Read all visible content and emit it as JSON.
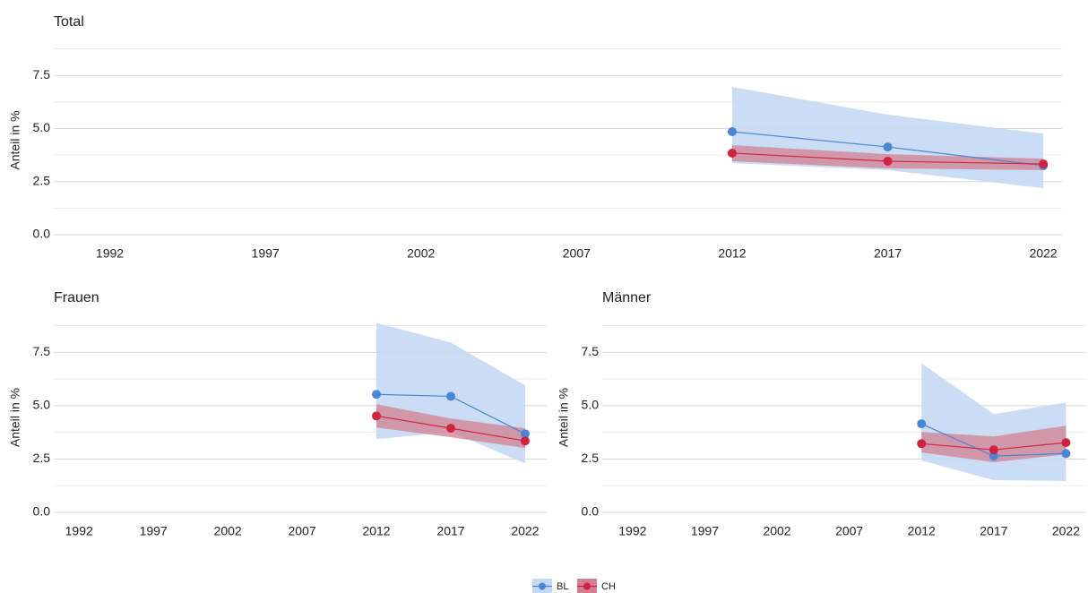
{
  "chart_data": [
    {
      "type": "line",
      "title": "Total",
      "ylabel": "Anteil in %",
      "x": [
        2012,
        2017,
        2022
      ],
      "xlim": [
        1990.2,
        2022.6
      ],
      "xticks": [
        1992,
        1997,
        2002,
        2007,
        2012,
        2017,
        2022
      ],
      "ylim": [
        0,
        8.9
      ],
      "yticks": [
        {
          "value": 0,
          "label": "0.0"
        },
        {
          "value": 2.5,
          "label": "2.5"
        },
        {
          "value": 5,
          "label": "5.0"
        },
        {
          "value": 7.5,
          "label": "7.5"
        }
      ],
      "yminorticks": [
        1.25,
        3.75,
        6.25,
        8.75
      ],
      "grid": true,
      "series": [
        {
          "name": "BL",
          "color": "#4a86d8",
          "band_color": "#c5d9f3",
          "values": [
            4.85,
            4.13,
            3.25
          ],
          "lower": [
            3.37,
            3.04,
            2.19
          ],
          "upper": [
            6.96,
            5.65,
            4.76
          ]
        },
        {
          "name": "CH",
          "color": "#d1233f",
          "band_color": "#d27f90",
          "values": [
            3.84,
            3.46,
            3.33
          ],
          "lower": [
            3.46,
            3.12,
            3.04
          ],
          "upper": [
            4.22,
            3.79,
            3.58
          ]
        }
      ]
    },
    {
      "type": "line",
      "title": "Frauen",
      "ylabel": "Anteil in %",
      "x": [
        2012,
        2017,
        2022
      ],
      "xlim": [
        1990.3,
        2023.45
      ],
      "xticks": [
        1992,
        1997,
        2002,
        2007,
        2012,
        2017,
        2022
      ],
      "ylim": [
        0,
        8.9
      ],
      "yticks": [
        {
          "value": 0,
          "label": "0.0"
        },
        {
          "value": 2.5,
          "label": "2.5"
        },
        {
          "value": 5,
          "label": "5.0"
        },
        {
          "value": 7.5,
          "label": "7.5"
        }
      ],
      "yminorticks": [
        1.25,
        3.75,
        6.25,
        8.75
      ],
      "grid": true,
      "series": [
        {
          "name": "BL",
          "color": "#4a86d8",
          "band_color": "#c5d9f3",
          "values": [
            5.53,
            5.44,
            3.68
          ],
          "lower": [
            3.43,
            3.77,
            2.3
          ],
          "upper": [
            8.88,
            7.96,
            5.95
          ]
        },
        {
          "name": "CH",
          "color": "#d1233f",
          "band_color": "#d27f90",
          "values": [
            4.52,
            3.94,
            3.35
          ],
          "lower": [
            3.98,
            3.52,
            3.02
          ],
          "upper": [
            5.07,
            4.4,
            3.94
          ]
        }
      ]
    },
    {
      "type": "line",
      "title": "Männer",
      "ylabel": "Anteil in %",
      "x": [
        2012,
        2017,
        2022
      ],
      "xlim": [
        1989.9,
        2023.4
      ],
      "xticks": [
        1992,
        1997,
        2002,
        2007,
        2012,
        2017,
        2022
      ],
      "ylim": [
        0,
        8.9
      ],
      "yticks": [
        {
          "value": 0,
          "label": "0.0"
        },
        {
          "value": 2.5,
          "label": "2.5"
        },
        {
          "value": 5,
          "label": "5.0"
        },
        {
          "value": 7.5,
          "label": "7.5"
        }
      ],
      "yminorticks": [
        1.25,
        3.75,
        6.25,
        8.75
      ],
      "grid": true,
      "series": [
        {
          "name": "BL",
          "color": "#4a86d8",
          "band_color": "#c5d9f3",
          "values": [
            4.15,
            2.64,
            2.76
          ],
          "lower": [
            2.43,
            1.51,
            1.47
          ],
          "upper": [
            6.99,
            4.61,
            5.15
          ]
        },
        {
          "name": "CH",
          "color": "#d1233f",
          "band_color": "#d27f90",
          "values": [
            3.22,
            2.93,
            3.27
          ],
          "lower": [
            2.81,
            2.35,
            2.72
          ],
          "upper": [
            3.77,
            3.56,
            4.06
          ]
        }
      ]
    }
  ],
  "legend_position": "bottom"
}
